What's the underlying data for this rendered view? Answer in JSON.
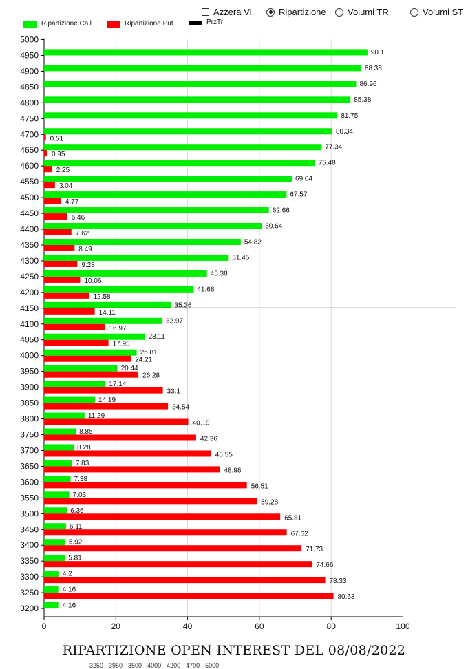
{
  "controls": [
    {
      "label": "Azzera Vl.",
      "kind": "checkbox",
      "checked": false
    },
    {
      "label": "Ripartizione",
      "kind": "radio",
      "checked": true
    },
    {
      "label": "Volumi TR",
      "kind": "radio",
      "checked": false
    },
    {
      "label": "Volumi ST",
      "kind": "radio",
      "checked": false
    }
  ],
  "legend": [
    {
      "label": "Ripartizione Call",
      "color": "#00ee00"
    },
    {
      "label": "Ripartizione Put",
      "color": "#ff0000"
    },
    {
      "label": "PrzTr",
      "color": "#000000"
    }
  ],
  "chart_data": {
    "type": "bar",
    "orientation": "horizontal",
    "title": "RIPARTIZIONE OPEN INTEREST DEL 08/08/2022",
    "xlim": [
      0,
      100
    ],
    "xticks": [
      0,
      20,
      40,
      60,
      80,
      100
    ],
    "ytick_labels": [
      "5000",
      "4950",
      "4900",
      "4850",
      "4800",
      "4750",
      "4700",
      "4650",
      "4600",
      "4550",
      "4500",
      "4450",
      "4400",
      "4350",
      "4300",
      "4250",
      "4200",
      "4150",
      "4100",
      "4050",
      "4000",
      "3950",
      "3900",
      "3850",
      "3800",
      "3750",
      "3700",
      "3650",
      "3600",
      "3550",
      "3500",
      "3450",
      "3400",
      "3350",
      "3300",
      "3250",
      "3200"
    ],
    "categories": [
      "4950",
      "4900",
      "4850",
      "4800",
      "4750",
      "4700",
      "4650",
      "4600",
      "4550",
      "4500",
      "4450",
      "4400",
      "4350",
      "4300",
      "4250",
      "4200",
      "4150",
      "4100",
      "4050",
      "4000",
      "3950",
      "3900",
      "3850",
      "3800",
      "3750",
      "3700",
      "3650",
      "3600",
      "3550",
      "3500",
      "3450",
      "3400",
      "3350",
      "3300",
      "3250",
      "3200"
    ],
    "series": [
      {
        "name": "Ripartizione Call",
        "color": "#00ee00",
        "values": [
          90.1,
          88.38,
          86.96,
          85.38,
          81.75,
          80.34,
          77.34,
          75.48,
          69.04,
          67.57,
          62.66,
          60.64,
          54.82,
          51.45,
          45.38,
          41.68,
          35.36,
          32.97,
          28.11,
          25.81,
          20.44,
          17.14,
          14.19,
          11.29,
          8.85,
          8.28,
          7.83,
          7.38,
          7.03,
          6.36,
          6.11,
          5.92,
          5.81,
          4.2,
          4.16,
          4.16
        ]
      },
      {
        "name": "Ripartizione Put",
        "color": "#ff0000",
        "values": [
          null,
          null,
          null,
          null,
          null,
          0.51,
          0.95,
          2.25,
          3.04,
          4.77,
          6.46,
          7.62,
          8.49,
          9.28,
          10.06,
          12.58,
          14.11,
          16.97,
          17.95,
          24.21,
          26.28,
          33.1,
          34.54,
          40.19,
          42.36,
          46.55,
          48.98,
          56.51,
          59.28,
          65.81,
          67.62,
          71.73,
          74.66,
          78.33,
          80.63,
          null
        ]
      }
    ],
    "price_line": {
      "name": "PrzTr",
      "level": "4150"
    },
    "grid": true
  },
  "footer_cut_text": "3250 · 3950 · 3500 · 4000 · 4200 · 4700 · 5000"
}
